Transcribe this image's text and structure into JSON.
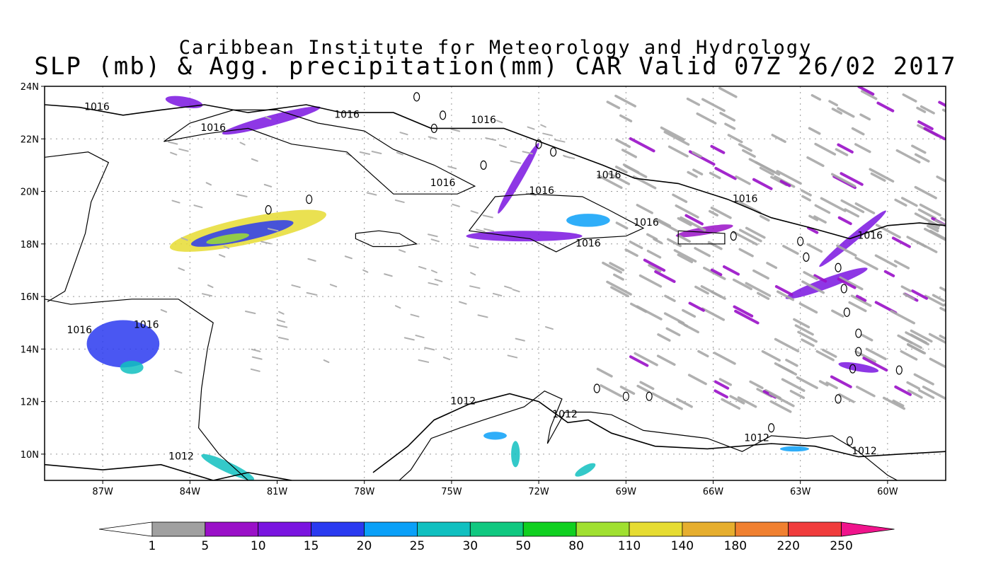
{
  "title": {
    "line1": "Caribbean Institute for Meteorology and Hydrology",
    "line2": "SLP (mb) & Agg. precipitation(mm) CAR Valid 07Z 26/02 2017"
  },
  "map": {
    "lon_range": [
      -89,
      -58
    ],
    "lat_range": [
      9,
      24
    ],
    "lat_ticks": [
      {
        "value": 24,
        "label": "24N"
      },
      {
        "value": 22,
        "label": "22N"
      },
      {
        "value": 20,
        "label": "20N"
      },
      {
        "value": 18,
        "label": "18N"
      },
      {
        "value": 16,
        "label": "16N"
      },
      {
        "value": 14,
        "label": "14N"
      },
      {
        "value": 12,
        "label": "12N"
      },
      {
        "value": 10,
        "label": "10N"
      }
    ],
    "lon_ticks": [
      {
        "value": -87,
        "label": "87W"
      },
      {
        "value": -84,
        "label": "84W"
      },
      {
        "value": -81,
        "label": "81W"
      },
      {
        "value": -78,
        "label": "78W"
      },
      {
        "value": -75,
        "label": "75W"
      },
      {
        "value": -72,
        "label": "72W"
      },
      {
        "value": -69,
        "label": "69W"
      },
      {
        "value": -66,
        "label": "66W"
      },
      {
        "value": -63,
        "label": "63W"
      },
      {
        "value": -60,
        "label": "60W"
      }
    ],
    "grid": "dotted",
    "contour_labels": [
      {
        "text": "1016",
        "lon": -87.2,
        "lat": 23.1
      },
      {
        "text": "1016",
        "lon": -83.2,
        "lat": 22.3
      },
      {
        "text": "1016",
        "lon": -78.6,
        "lat": 22.8
      },
      {
        "text": "1016",
        "lon": -73.9,
        "lat": 22.6
      },
      {
        "text": "1016",
        "lon": -75.3,
        "lat": 20.2
      },
      {
        "text": "1016",
        "lon": -71.9,
        "lat": 19.9
      },
      {
        "text": "1016",
        "lon": -69.6,
        "lat": 20.5
      },
      {
        "text": "1016",
        "lon": -64.9,
        "lat": 19.6
      },
      {
        "text": "1016",
        "lon": -68.3,
        "lat": 18.7
      },
      {
        "text": "1016",
        "lon": -70.3,
        "lat": 17.9
      },
      {
        "text": "1016",
        "lon": -60.6,
        "lat": 18.2
      },
      {
        "text": "1016",
        "lon": -87.8,
        "lat": 14.6
      },
      {
        "text": "1016",
        "lon": -85.5,
        "lat": 14.8
      },
      {
        "text": "1012",
        "lon": -74.6,
        "lat": 11.9
      },
      {
        "text": "1012",
        "lon": -71.1,
        "lat": 11.4
      },
      {
        "text": "1012",
        "lon": -64.5,
        "lat": 10.5
      },
      {
        "text": "1012",
        "lon": -84.3,
        "lat": 9.8
      },
      {
        "text": "1012",
        "lon": -60.8,
        "lat": 10.0
      }
    ]
  },
  "colorbar": {
    "labels": [
      "1",
      "5",
      "10",
      "15",
      "20",
      "25",
      "30",
      "50",
      "80",
      "110",
      "140",
      "180",
      "220",
      "250"
    ],
    "colors": [
      "#ffffff",
      "#a0a0a0",
      "#9a10c8",
      "#7a14e0",
      "#2a3af0",
      "#0aa0f8",
      "#10c0c0",
      "#10c880",
      "#10d020",
      "#a0e030",
      "#e6dc32",
      "#e6ae2e",
      "#f08030",
      "#f03c3c",
      "#f0148c"
    ]
  },
  "precip_areas": [
    {
      "lon": -82.0,
      "lat": 18.5,
      "w": 5.5,
      "h": 1.0,
      "rot": -12,
      "level": 10
    },
    {
      "lon": -82.2,
      "lat": 18.4,
      "w": 3.6,
      "h": 0.6,
      "rot": -12,
      "level": 4
    },
    {
      "lon": -82.7,
      "lat": 18.2,
      "w": 1.5,
      "h": 0.3,
      "rot": -10,
      "level": 9
    },
    {
      "lon": -81.2,
      "lat": 22.7,
      "w": 3.5,
      "h": 0.4,
      "rot": -15,
      "level": 3
    },
    {
      "lon": -84.2,
      "lat": 23.4,
      "w": 1.3,
      "h": 0.4,
      "rot": 10,
      "level": 3
    },
    {
      "lon": -72.7,
      "lat": 20.5,
      "w": 2.8,
      "h": 0.3,
      "rot": -60,
      "level": 3
    },
    {
      "lon": -72.5,
      "lat": 18.3,
      "w": 4.0,
      "h": 0.4,
      "rot": 0,
      "level": 3
    },
    {
      "lon": -70.3,
      "lat": 18.9,
      "w": 1.5,
      "h": 0.5,
      "rot": 0,
      "level": 5
    },
    {
      "lon": -66.3,
      "lat": 18.5,
      "w": 2.0,
      "h": 0.3,
      "rot": -10,
      "level": 2
    },
    {
      "lon": -62.1,
      "lat": 16.5,
      "w": 3.0,
      "h": 0.4,
      "rot": -20,
      "level": 3
    },
    {
      "lon": -61.0,
      "lat": 13.3,
      "w": 1.4,
      "h": 0.3,
      "rot": 10,
      "level": 3
    },
    {
      "lon": -61.2,
      "lat": 18.2,
      "w": 3.0,
      "h": 0.3,
      "rot": -40,
      "level": 3
    },
    {
      "lon": -86.3,
      "lat": 14.2,
      "w": 2.5,
      "h": 1.8,
      "rot": 0,
      "level": 4
    },
    {
      "lon": -86.0,
      "lat": 13.3,
      "w": 0.8,
      "h": 0.5,
      "rot": 0,
      "level": 6
    },
    {
      "lon": -82.7,
      "lat": 9.5,
      "w": 2.0,
      "h": 0.4,
      "rot": 25,
      "level": 6
    },
    {
      "lon": -73.5,
      "lat": 10.7,
      "w": 0.8,
      "h": 0.3,
      "rot": 0,
      "level": 5
    },
    {
      "lon": -72.8,
      "lat": 10.0,
      "w": 0.3,
      "h": 1.0,
      "rot": 0,
      "level": 6
    },
    {
      "lon": -70.4,
      "lat": 9.4,
      "w": 0.8,
      "h": 0.3,
      "rot": -30,
      "level": 6
    },
    {
      "lon": -63.2,
      "lat": 10.2,
      "w": 1.0,
      "h": 0.2,
      "rot": 0,
      "level": 5
    }
  ]
}
